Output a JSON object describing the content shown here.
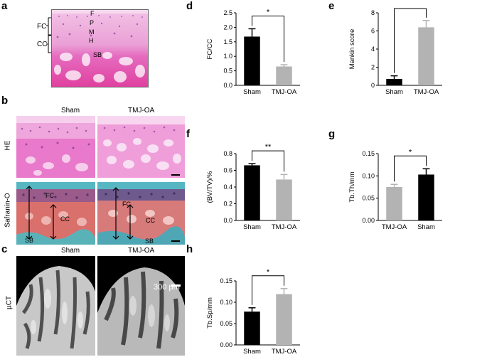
{
  "panels": {
    "a": {
      "letter": "a",
      "fc_label": "FC",
      "cc_label": "CC",
      "zone_labels": [
        "F",
        "P",
        "M",
        "H",
        "SB"
      ]
    },
    "b": {
      "letter": "b",
      "col_sham": "Sham",
      "col_tmj": "TMJ-OA",
      "row_he": "HE",
      "row_safranin": "Safranin-O",
      "safranin_labels": {
        "fc": "FC",
        "cc": "CC",
        "sb": "SB"
      }
    },
    "c": {
      "letter": "c",
      "col_sham": "Sham",
      "col_tmj": "TMJ-OA",
      "row_label": "µCT",
      "scale_bar": "300 µm"
    },
    "d": {
      "letter": "d"
    },
    "e": {
      "letter": "e"
    },
    "f": {
      "letter": "f"
    },
    "g": {
      "letter": "g"
    },
    "h": {
      "letter": "h"
    }
  },
  "colors": {
    "black_bar": "#000000",
    "gray_bar": "#b3b3b3",
    "he_pink": "#e46fc4",
    "bone_magenta": "#e0409f",
    "safranin_red": "#d04a50",
    "fastgreen": "#56b7c3"
  },
  "chart_data": [
    {
      "id": "d",
      "type": "bar",
      "categories": [
        "Sham",
        "TMJ-OA"
      ],
      "values": [
        1.68,
        0.65
      ],
      "errors": [
        0.27,
        0.06
      ],
      "colors": [
        "#000000",
        "#b3b3b3"
      ],
      "ylabel": "FC/CC",
      "ylim": [
        0,
        2.5
      ],
      "yticks": [
        "0.0",
        "0.5",
        "1.0",
        "1.5",
        "2.0",
        "2.5"
      ],
      "significance": "*"
    },
    {
      "id": "e",
      "type": "bar",
      "categories": [
        "Sham",
        "TMJ-OA"
      ],
      "values": [
        0.7,
        6.4
      ],
      "errors": [
        0.35,
        0.75
      ],
      "colors": [
        "#000000",
        "#b3b3b3"
      ],
      "ylabel": "Mankin score",
      "ylim": [
        0,
        8
      ],
      "yticks": [
        "0",
        "2",
        "4",
        "6",
        "8"
      ],
      "significance": "**"
    },
    {
      "id": "f",
      "type": "bar",
      "categories": [
        "Sham",
        "TMJ-OA"
      ],
      "values": [
        0.66,
        0.49
      ],
      "errors": [
        0.02,
        0.06
      ],
      "colors": [
        "#000000",
        "#b3b3b3"
      ],
      "ylabel": "(BV/TV)/%",
      "ylim": [
        0,
        0.8
      ],
      "yticks": [
        "0.0",
        "0.2",
        "0.4",
        "0.6",
        "0.8"
      ],
      "significance": "**"
    },
    {
      "id": "g",
      "type": "bar",
      "categories": [
        "TMJ-OA",
        "Sham"
      ],
      "values": [
        0.075,
        0.103
      ],
      "errors": [
        0.006,
        0.013
      ],
      "colors": [
        "#b3b3b3",
        "#000000"
      ],
      "ylabel": "Tb.Th/mm",
      "ylim": [
        0,
        0.15
      ],
      "yticks": [
        "0.00",
        "0.05",
        "0.10",
        "0.15"
      ],
      "significance": "*"
    },
    {
      "id": "h",
      "type": "bar",
      "categories": [
        "Sham",
        "TMJ-OA"
      ],
      "values": [
        0.078,
        0.119
      ],
      "errors": [
        0.009,
        0.013
      ],
      "colors": [
        "#000000",
        "#b3b3b3"
      ],
      "ylabel": "Tb.Sp/mm",
      "ylim": [
        0,
        0.15
      ],
      "yticks": [
        "0.00",
        "0.05",
        "0.10",
        "0.15"
      ],
      "significance": "*"
    }
  ]
}
